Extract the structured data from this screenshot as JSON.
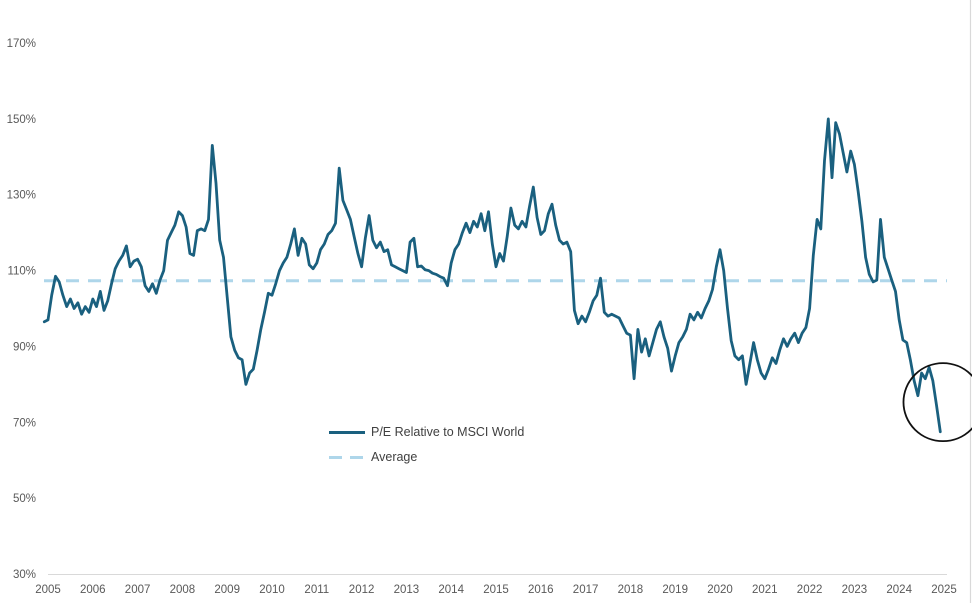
{
  "chart_data": {
    "type": "line",
    "title": "",
    "series": [
      {
        "name": "P/E Relative to MSCI World",
        "unit": "%",
        "frequency": "monthly",
        "start_year": 2004,
        "start_month": 12,
        "values": [
          96.5,
          97,
          103.5,
          108.5,
          107,
          103.5,
          100.5,
          102.5,
          100,
          101.5,
          98.5,
          100.5,
          99,
          102.5,
          100.5,
          104.5,
          99.5,
          102,
          106.5,
          110.5,
          112.5,
          114,
          116.5,
          111,
          112.5,
          113,
          111,
          106,
          104.5,
          106.5,
          104,
          107.5,
          110,
          118,
          120,
          122,
          125.5,
          124.5,
          121.5,
          114.5,
          114,
          120.5,
          121,
          120.5,
          123.5,
          143,
          133,
          118,
          113.5,
          103,
          92.5,
          89,
          87,
          86.5,
          80,
          83,
          84,
          89,
          94.5,
          99,
          104,
          103.5,
          106.5,
          110,
          112,
          113.5,
          117,
          121,
          114,
          118.5,
          117,
          111.5,
          110.5,
          112,
          115.5,
          117,
          119.5,
          120.5,
          122.5,
          137,
          128.5,
          126,
          123.5,
          119,
          114.5,
          111,
          118.5,
          124.5,
          118,
          116,
          117.5,
          115,
          115.5,
          111.5,
          111,
          110.5,
          110,
          109.5,
          117.5,
          118.5,
          111,
          111.2,
          110.2,
          110,
          109.3,
          109,
          108.4,
          108,
          106,
          112,
          115.5,
          117,
          120,
          122.5,
          120,
          123,
          121.5,
          125,
          120.5,
          125.5,
          117,
          111,
          114.5,
          112.5,
          119,
          126.5,
          122,
          121,
          123,
          121.5,
          127,
          132,
          124,
          119.5,
          120.5,
          125,
          127.5,
          122,
          118,
          117,
          117.5,
          115,
          99.5,
          96,
          98,
          96.5,
          99,
          102,
          103.5,
          108,
          99,
          98,
          98.5,
          98,
          97.5,
          95.5,
          93.5,
          93,
          81.5,
          94.5,
          88.5,
          92,
          87.5,
          91,
          94.5,
          96.5,
          92.5,
          89.5,
          83.5,
          87.5,
          91,
          92.5,
          94.5,
          98.5,
          97,
          99,
          97.5,
          100,
          102,
          105,
          111,
          115.5,
          110,
          100,
          91.5,
          87.5,
          86.5,
          87.5,
          80,
          85.5,
          91,
          86.5,
          83,
          81.5,
          84,
          87,
          85.5,
          89,
          92,
          90,
          92,
          93.5,
          91,
          93.5,
          95,
          100,
          114,
          123.5,
          121,
          139,
          150,
          134.5,
          149,
          146,
          141,
          136,
          141.5,
          138,
          131,
          123,
          113.5,
          109,
          107,
          107.5,
          123.5,
          113.5,
          110.5,
          107.5,
          104.5,
          97,
          91.7,
          91,
          86.4,
          81,
          77,
          83,
          81.5,
          84.5,
          81,
          74.5,
          67.5
        ]
      },
      {
        "name": "Average",
        "unit": "%",
        "type": "constant",
        "value": 107.3
      }
    ],
    "x_axis": {
      "tick_labels": [
        "2005",
        "2006",
        "2007",
        "2008",
        "2009",
        "2010",
        "2011",
        "2012",
        "2013",
        "2014",
        "2015",
        "2016",
        "2017",
        "2018",
        "2019",
        "2020",
        "2021",
        "2022",
        "2023",
        "2024",
        "2025"
      ],
      "first_tick_year": 2005
    },
    "y_axis": {
      "tick_labels": [
        "170%",
        "150%",
        "130%",
        "110%",
        "90%",
        "70%",
        "50%",
        "30%"
      ],
      "tick_values": [
        170,
        150,
        130,
        110,
        90,
        70,
        50,
        30
      ],
      "min": 30,
      "max": 170,
      "grid": "baseline-only"
    },
    "legend": {
      "position": "bottom-left-of-center",
      "entries": [
        {
          "label": "P/E Relative to MSCI World",
          "style": "solid",
          "color": "#1a607f"
        },
        {
          "label": "Average",
          "style": "dashed",
          "color": "#aed6ea"
        }
      ]
    },
    "annotation": {
      "type": "circle-highlight",
      "description": "hand-drawn circle around the 2024-2025 plunge",
      "center_year_fraction": 2024.62,
      "center_value_pct": 76.5,
      "color": "#111111"
    }
  },
  "colors": {
    "pe_line": "#1a607f",
    "average_line": "#aed6ea",
    "axis_text": "#595959",
    "legend_text": "#404040",
    "axis_line": "#d9d9d9",
    "right_border": "#d9d9d9",
    "annotation_circle": "#111111",
    "background": "#ffffff"
  }
}
